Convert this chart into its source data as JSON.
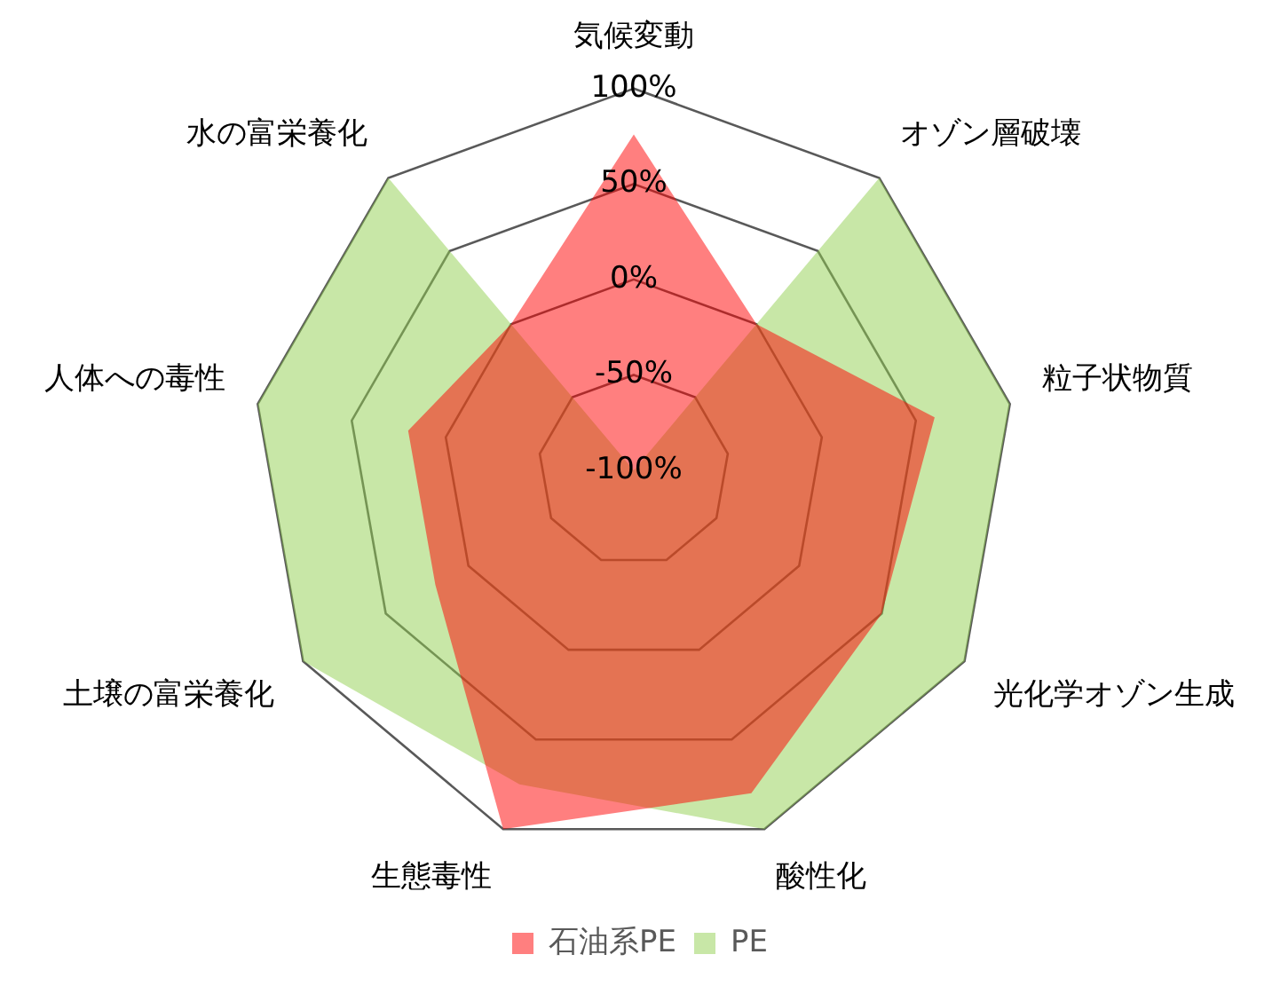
{
  "chart_data": {
    "type": "radar",
    "categories": [
      "気候変動",
      "オゾン層破壊",
      "粒子状物質",
      "光化学オゾン生成",
      "酸性化",
      "生態毒性",
      "土壌の富栄養化",
      "人体への毒性",
      "水の富栄養化"
    ],
    "series": [
      {
        "name": "石油系PE",
        "color": "#ff0000",
        "values": [
          76,
          0,
          60,
          50,
          80,
          100,
          20,
          20,
          0
        ]
      },
      {
        "name": "PE",
        "color": "#92d050",
        "values": [
          -100,
          100,
          100,
          100,
          100,
          75,
          100,
          100,
          100
        ]
      }
    ],
    "ylim": [
      -100,
      100
    ],
    "yticks": [
      {
        "value": -100,
        "label": "-100%"
      },
      {
        "value": -50,
        "label": "-50%"
      },
      {
        "value": 0,
        "label": "0%"
      },
      {
        "value": 50,
        "label": "50%"
      },
      {
        "value": 100,
        "label": "100%"
      }
    ],
    "grid": true,
    "legend": "bottom"
  }
}
